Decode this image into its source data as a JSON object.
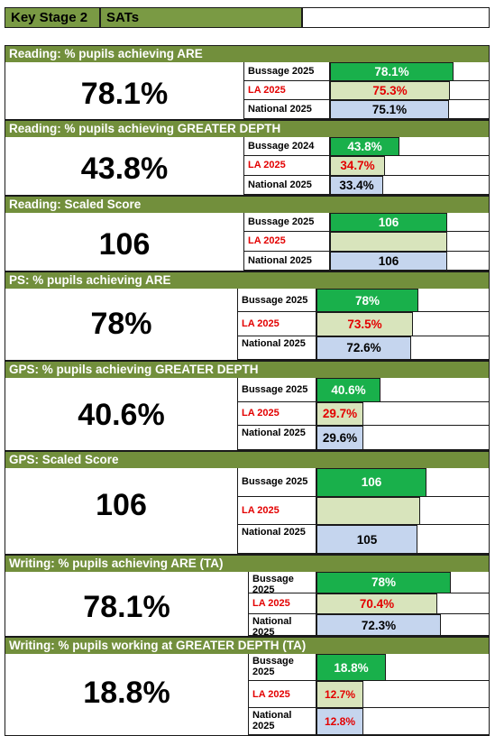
{
  "header": {
    "key_stage": "Key Stage 2",
    "title": "SATs"
  },
  "sections": [
    {
      "title": "Reading: % pupils achieving ARE",
      "big_value": "78.1%",
      "rows": [
        {
          "label": "Bussage 2025",
          "value": "78.1%",
          "fraction": 0.781
        },
        {
          "label": "LA 2025",
          "value": "75.3%",
          "fraction": 0.753
        },
        {
          "label": "National 2025",
          "value": "75.1%",
          "fraction": 0.751
        }
      ]
    },
    {
      "title": "Reading: % pupils achieving GREATER DEPTH",
      "big_value": "43.8%",
      "rows": [
        {
          "label": "Bussage 2024",
          "value": "43.8%",
          "fraction": 0.438
        },
        {
          "label": "LA 2025",
          "value": "34.7%",
          "fraction": 0.347
        },
        {
          "label": "National 2025",
          "value": "33.4%",
          "fraction": 0.334
        }
      ]
    },
    {
      "title": "Reading: Scaled Score",
      "big_value": "106",
      "rows": [
        {
          "label": "Bussage 2025",
          "value": "106",
          "fraction": 1.0
        },
        {
          "label": "LA 2025",
          "value": "",
          "fraction": 1.0
        },
        {
          "label": "National 2025",
          "value": "106",
          "fraction": 1.0
        }
      ]
    },
    {
      "title": "PS: % pupils achieving ARE",
      "big_value": "78%",
      "rows": [
        {
          "label": "Bussage 2025",
          "value": "78%",
          "fraction": 0.78
        },
        {
          "label": "LA 2025",
          "value": "73.5%",
          "fraction": 0.735
        },
        {
          "label": "National 2025",
          "value": "72.6%",
          "fraction": 0.726
        }
      ]
    },
    {
      "title": "GPS: % pupils achieving GREATER DEPTH",
      "big_value": "40.6%",
      "rows": [
        {
          "label": "Bussage 2025",
          "value": "40.6%",
          "fraction": 0.406
        },
        {
          "label": "LA 2025",
          "value": "29.7%",
          "fraction": 0.297
        },
        {
          "label": "National 2025",
          "value": "29.6%",
          "fraction": 0.296
        }
      ]
    },
    {
      "title": "GPS: Scaled Score",
      "big_value": "106",
      "rows": [
        {
          "label": "Bussage 2025",
          "value": "106",
          "fraction": 0.78
        },
        {
          "label": "LA 2025",
          "value": "",
          "fraction": 0.74
        },
        {
          "label": "National 2025",
          "value": "105",
          "fraction": 0.72
        }
      ]
    },
    {
      "title": "Writing: % pupils achieving ARE (TA)",
      "big_value": "78.1%",
      "rows": [
        {
          "label": "Bussage 2025",
          "value": "78%",
          "fraction": 0.78
        },
        {
          "label": "LA 2025",
          "value": "70.4%",
          "fraction": 0.704
        },
        {
          "label": "National 2025",
          "value": "72.3%",
          "fraction": 0.723
        }
      ]
    },
    {
      "title": "Writing: % pupils working at GREATER DEPTH (TA)",
      "big_value": "18.8%",
      "rows": [
        {
          "label": "Bussage 2025",
          "value": "18.8%",
          "fraction": 0.188
        },
        {
          "label": "LA 2025",
          "value": "12.7%",
          "fraction": 0.127
        },
        {
          "label": "National 2025",
          "value": "12.8%",
          "fraction": 0.128
        }
      ]
    }
  ],
  "colors": {
    "header_green": "#728f3c",
    "school_bar": "#19b04b",
    "la_bar": "#d8e4bc",
    "national_bar": "#c5d5ee",
    "la_text": "#e30000"
  }
}
